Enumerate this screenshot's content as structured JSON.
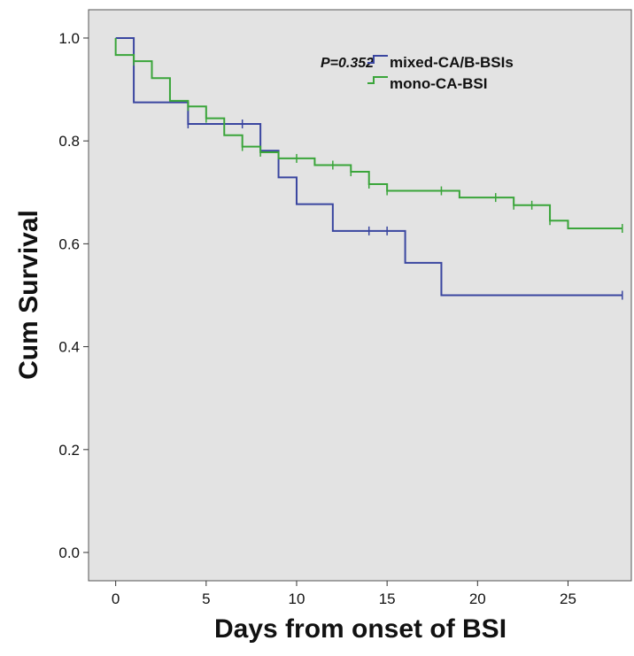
{
  "chart_data": {
    "type": "line",
    "subtype": "kaplan-meier-step",
    "title": "",
    "xlabel": "Days from onset of BSI",
    "ylabel": "Cum Survival",
    "xlim": [
      -1.5,
      28.5
    ],
    "ylim": [
      -0.055,
      1.055
    ],
    "x_ticks": [
      0,
      5,
      10,
      15,
      20,
      25
    ],
    "y_ticks": [
      0.0,
      0.2,
      0.4,
      0.6,
      0.8,
      1.0
    ],
    "x_tick_labels": [
      "0",
      "5",
      "10",
      "15",
      "20",
      "25"
    ],
    "y_tick_labels": [
      "0.0",
      "0.2",
      "0.4",
      "0.6",
      "0.8",
      "1.0"
    ],
    "grid": false,
    "background": "#e3e3e3",
    "legend_position": "top-right",
    "annotation": "P=0.352",
    "series": [
      {
        "name": "mixed-CA/B-BSIs",
        "color": "#3a46a0",
        "steps": [
          [
            0,
            1.0
          ],
          [
            1,
            0.875
          ],
          [
            4,
            0.833
          ],
          [
            8,
            0.781
          ],
          [
            9,
            0.729
          ],
          [
            10,
            0.677
          ],
          [
            12,
            0.625
          ],
          [
            16,
            0.563
          ],
          [
            18,
            0.5
          ],
          [
            28,
            0.5
          ]
        ],
        "censored": [
          [
            4,
            0.833
          ],
          [
            7,
            0.833
          ],
          [
            14,
            0.625
          ],
          [
            15,
            0.625
          ],
          [
            28,
            0.5
          ]
        ]
      },
      {
        "name": "mono-CA-BSI",
        "color": "#3aa53a",
        "steps": [
          [
            0,
            0.967
          ],
          [
            1,
            0.955
          ],
          [
            2,
            0.922
          ],
          [
            3,
            0.878
          ],
          [
            4,
            0.867
          ],
          [
            5,
            0.844
          ],
          [
            6,
            0.811
          ],
          [
            7,
            0.789
          ],
          [
            8,
            0.778
          ],
          [
            9,
            0.766
          ],
          [
            11,
            0.753
          ],
          [
            13,
            0.74
          ],
          [
            14,
            0.716
          ],
          [
            15,
            0.703
          ],
          [
            19,
            0.69
          ],
          [
            22,
            0.675
          ],
          [
            24,
            0.645
          ],
          [
            25,
            0.63
          ],
          [
            28,
            0.63
          ]
        ],
        "censored": [
          [
            1,
            0.955
          ],
          [
            4,
            0.867
          ],
          [
            5,
            0.844
          ],
          [
            7,
            0.789
          ],
          [
            8,
            0.778
          ],
          [
            10,
            0.766
          ],
          [
            12,
            0.753
          ],
          [
            13,
            0.74
          ],
          [
            14,
            0.716
          ],
          [
            15,
            0.703
          ],
          [
            18,
            0.703
          ],
          [
            21,
            0.69
          ],
          [
            22,
            0.675
          ],
          [
            23,
            0.675
          ],
          [
            24,
            0.645
          ],
          [
            28,
            0.63
          ]
        ]
      }
    ]
  }
}
